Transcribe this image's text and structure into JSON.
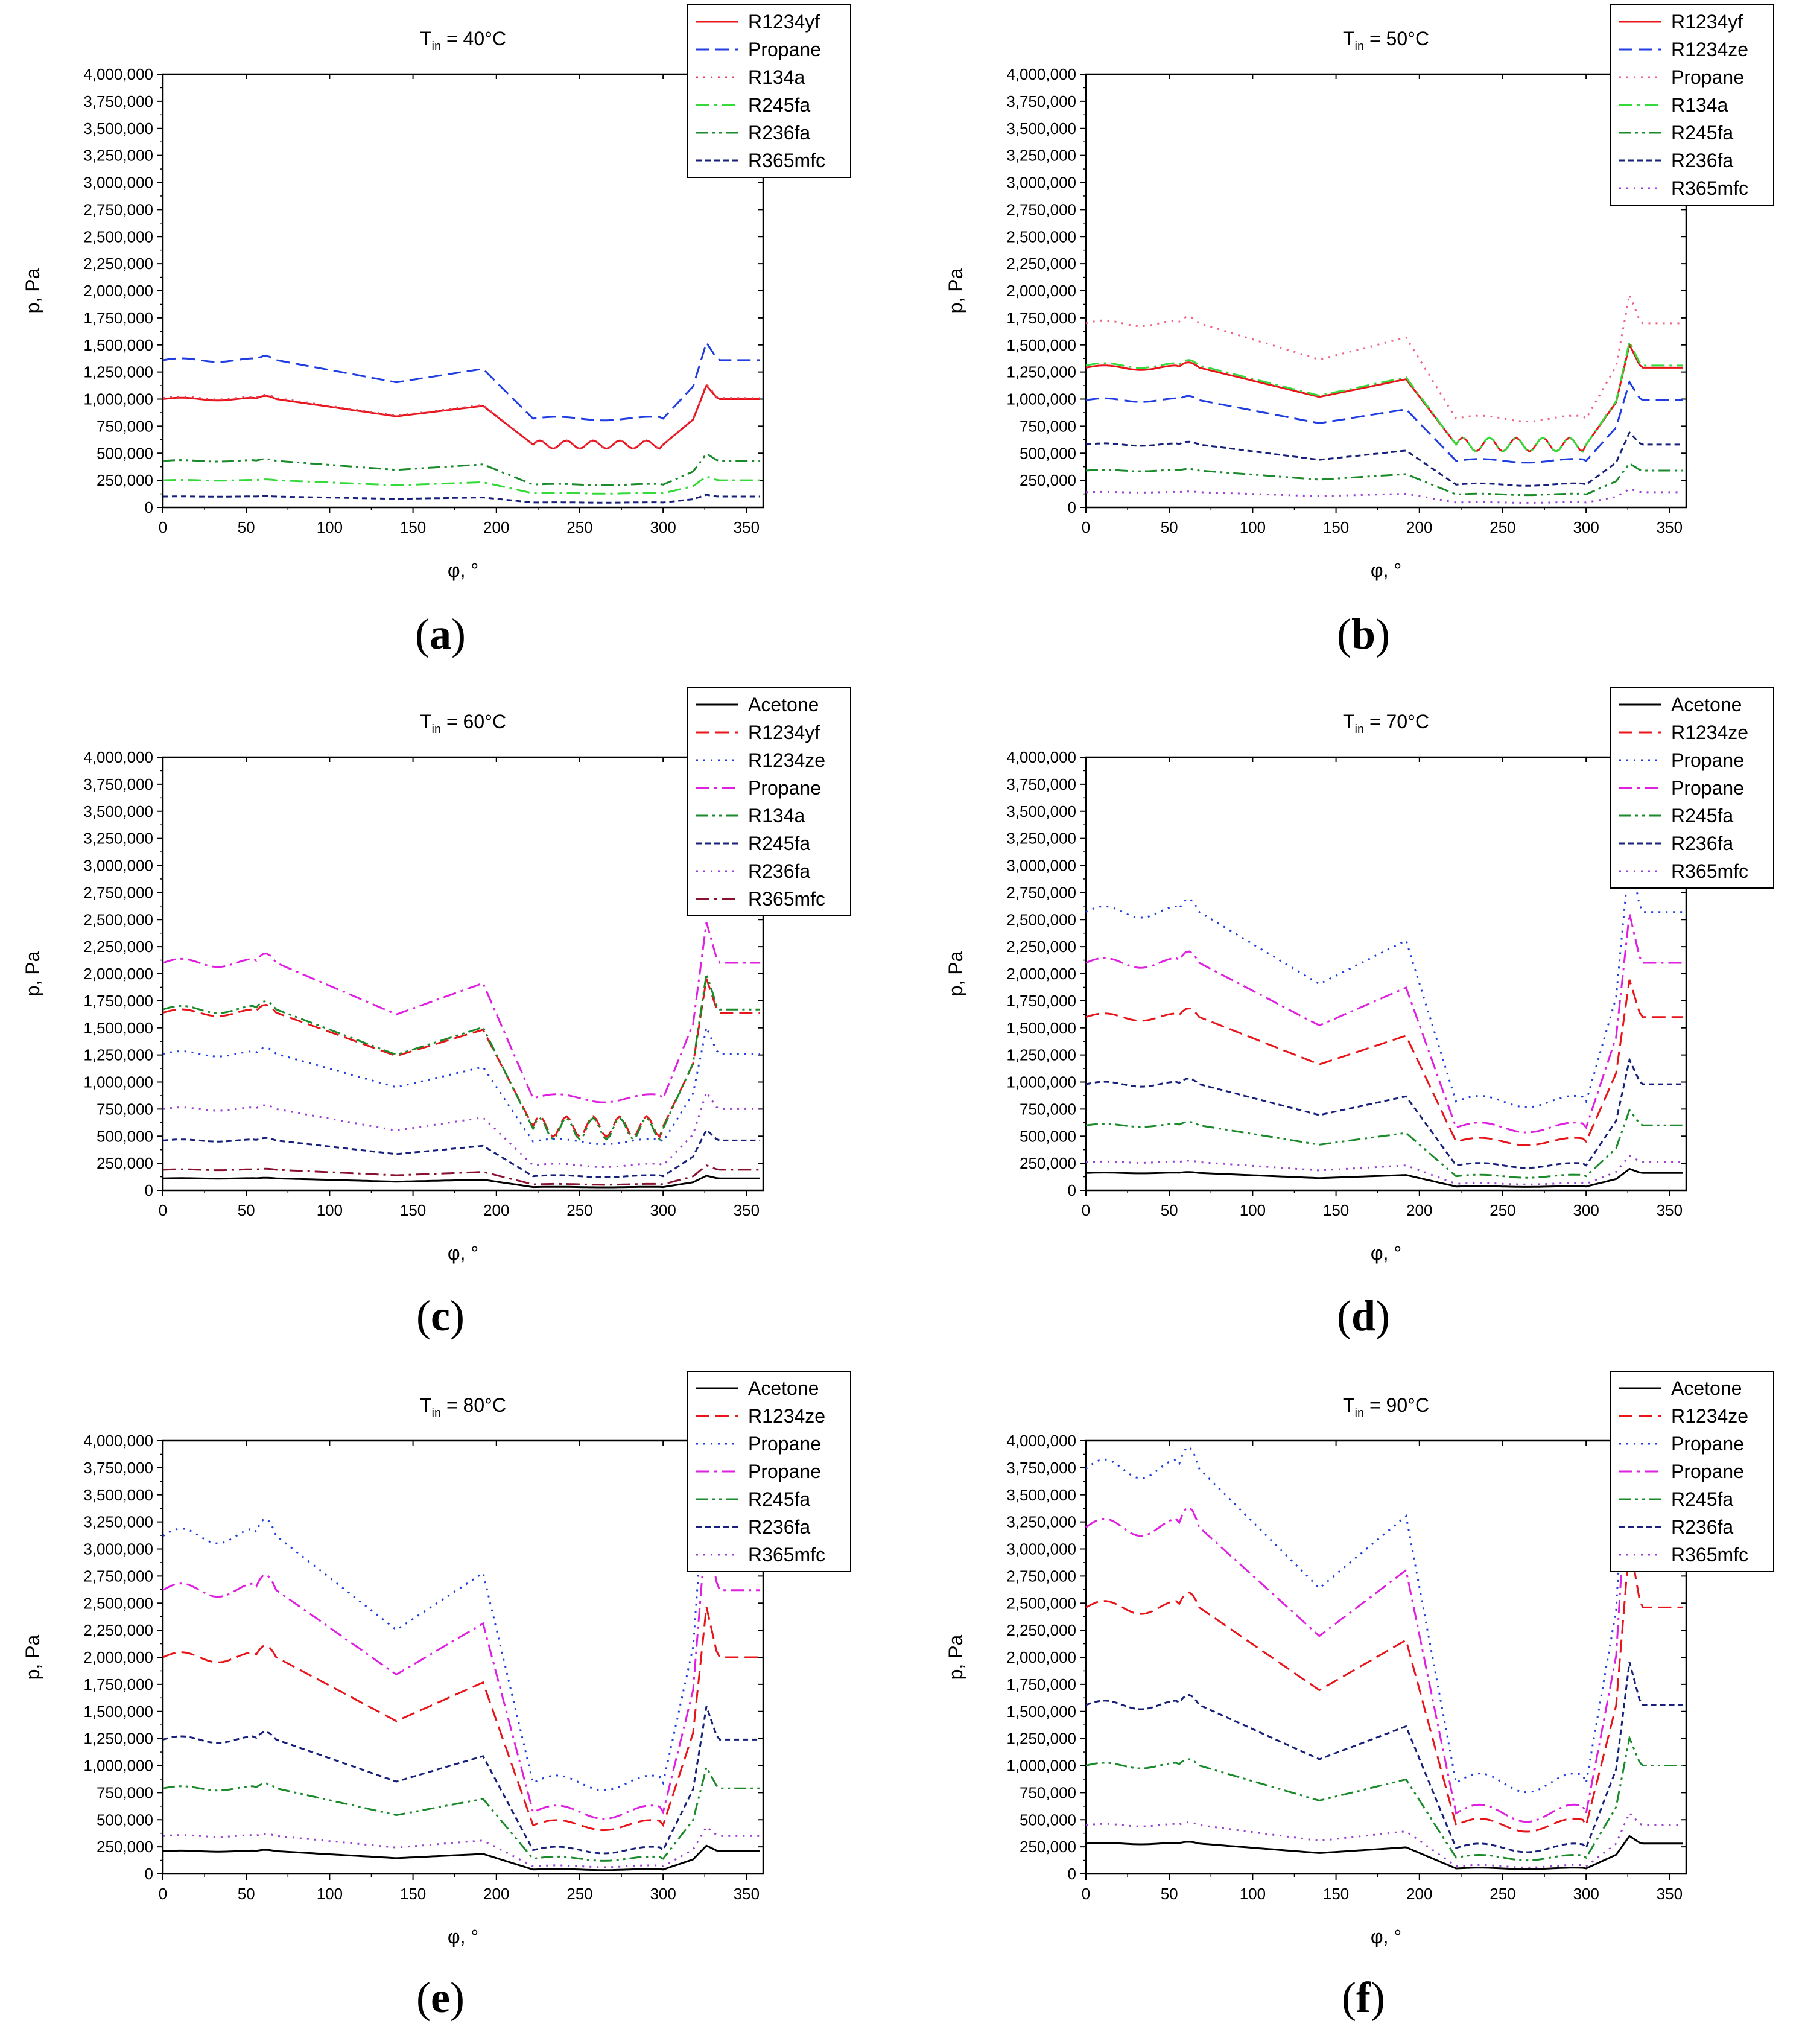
{
  "figure": {
    "panel_labels": [
      {
        "pre": "(",
        "letter": "a",
        "post": ")"
      },
      {
        "pre": "(",
        "letter": "b",
        "post": ")"
      },
      {
        "pre": "(",
        "letter": "c",
        "post": ")"
      },
      {
        "pre": "(",
        "letter": "d",
        "post": ")"
      },
      {
        "pre": "(",
        "letter": "e",
        "post": ")"
      },
      {
        "pre": "(",
        "letter": "f",
        "post": ")"
      }
    ]
  },
  "chart_data": [
    {
      "type": "line",
      "title": {
        "prefix": "T",
        "subscript": "in",
        "suffix": " = 40°C"
      },
      "xlabel": "φ, °",
      "ylabel": "p, Pa",
      "xlim": [
        0,
        360
      ],
      "ylim": [
        0,
        4000000
      ],
      "xticks": [
        0,
        50,
        100,
        150,
        200,
        250,
        300,
        350
      ],
      "yticks": [
        0,
        250000,
        500000,
        750000,
        1000000,
        1250000,
        1500000,
        1750000,
        2000000,
        2250000,
        2500000,
        2750000,
        3000000,
        3250000,
        3500000,
        3750000,
        4000000
      ],
      "ytick_labels": [
        "0",
        "250,000",
        "500,000",
        "750,000",
        "1,000,000",
        "1,250,000",
        "1,500,000",
        "1,750,000",
        "2,000,000",
        "2,250,000",
        "2,500,000",
        "2,750,000",
        "3,000,000",
        "3,250,000",
        "3,500,000",
        "3,750,000",
        "4,000,000"
      ],
      "grid": false,
      "legend_position": "top-right",
      "series": [
        {
          "name": "R1234yf",
          "color": "#e8141a",
          "dash": "solid",
          "base": 1000000,
          "low": 580000,
          "wavy": true
        },
        {
          "name": "Propane",
          "color": "#1f3de0",
          "dash": "dash",
          "base": 1360000,
          "low": 820000,
          "wavy": false
        },
        {
          "name": "R134a",
          "color": "#e8405a",
          "dash": "dot",
          "base": 1010000,
          "low": 580000,
          "wavy": true
        },
        {
          "name": "R245fa",
          "color": "#34d93a",
          "dash": "dashdot",
          "base": 250000,
          "low": 130000,
          "wavy": false
        },
        {
          "name": "R236fa",
          "color": "#1a8a2a",
          "dash": "dashdotdot",
          "base": 430000,
          "low": 210000,
          "wavy": false
        },
        {
          "name": "R365mfc",
          "color": "#16207a",
          "dash": "shortdash",
          "base": 100000,
          "low": 45000,
          "wavy": false
        }
      ]
    },
    {
      "type": "line",
      "title": {
        "prefix": "T",
        "subscript": "in",
        "suffix": " = 50°C"
      },
      "xlabel": "φ, °",
      "ylabel": "p, Pa",
      "xlim": [
        0,
        360
      ],
      "ylim": [
        0,
        4000000
      ],
      "xticks": [
        0,
        50,
        100,
        150,
        200,
        250,
        300,
        350
      ],
      "yticks": [
        0,
        250000,
        500000,
        750000,
        1000000,
        1250000,
        1500000,
        1750000,
        2000000,
        2250000,
        2500000,
        2750000,
        3000000,
        3250000,
        3500000,
        3750000,
        4000000
      ],
      "ytick_labels": [
        "0",
        "250,000",
        "500,000",
        "750,000",
        "1,000,000",
        "1,250,000",
        "1,500,000",
        "1,750,000",
        "2,000,000",
        "2,250,000",
        "2,500,000",
        "2,750,000",
        "3,000,000",
        "3,250,000",
        "3,500,000",
        "3,750,000",
        "4,000,000"
      ],
      "grid": false,
      "legend_position": "top-right",
      "series": [
        {
          "name": "R1234yf",
          "color": "#e8141a",
          "dash": "solid",
          "base": 1290000,
          "low": 580000,
          "wavy": true
        },
        {
          "name": "R1234ze",
          "color": "#1f3de0",
          "dash": "dash",
          "base": 990000,
          "low": 430000,
          "wavy": false
        },
        {
          "name": "Propane",
          "color": "#f06080",
          "dash": "dot",
          "base": 1700000,
          "low": 820000,
          "wavy": false
        },
        {
          "name": "R134a",
          "color": "#34d93a",
          "dash": "dashdot",
          "base": 1310000,
          "low": 580000,
          "wavy": true
        },
        {
          "name": "R245fa",
          "color": "#1a8a2a",
          "dash": "dashdotdot",
          "base": 340000,
          "low": 120000,
          "wavy": false
        },
        {
          "name": "R236fa",
          "color": "#16207a",
          "dash": "shortdash",
          "base": 580000,
          "low": 210000,
          "wavy": false
        },
        {
          "name": "R365mfc",
          "color": "#9a3fd0",
          "dash": "dot",
          "base": 140000,
          "low": 45000,
          "wavy": false
        }
      ]
    },
    {
      "type": "line",
      "title": {
        "prefix": "T",
        "subscript": "in",
        "suffix": " = 60°C"
      },
      "xlabel": "φ, °",
      "ylabel": "p, Pa",
      "xlim": [
        0,
        360
      ],
      "ylim": [
        0,
        4000000
      ],
      "xticks": [
        0,
        50,
        100,
        150,
        200,
        250,
        300,
        350
      ],
      "yticks": [
        0,
        250000,
        500000,
        750000,
        1000000,
        1250000,
        1500000,
        1750000,
        2000000,
        2250000,
        2500000,
        2750000,
        3000000,
        3250000,
        3500000,
        3750000,
        4000000
      ],
      "ytick_labels": [
        "0",
        "250,000",
        "500,000",
        "750,000",
        "1,000,000",
        "1,250,000",
        "1,500,000",
        "1,750,000",
        "2,000,000",
        "2,250,000",
        "2,500,000",
        "2,750,000",
        "3,000,000",
        "3,250,000",
        "3,500,000",
        "3,750,000",
        "4,000,000"
      ],
      "grid": false,
      "legend_position": "top-right",
      "series": [
        {
          "name": "Acetone",
          "color": "#000000",
          "dash": "solid",
          "base": 110000,
          "low": 30000,
          "wavy": false
        },
        {
          "name": "R1234yf",
          "color": "#e8141a",
          "dash": "dash",
          "base": 1640000,
          "low": 590000,
          "wavy": true
        },
        {
          "name": "R1234ze",
          "color": "#1f3de0",
          "dash": "dot",
          "base": 1260000,
          "low": 450000,
          "wavy": false
        },
        {
          "name": "Propane",
          "color": "#e020e0",
          "dash": "dashdot",
          "base": 2100000,
          "low": 850000,
          "wavy": false
        },
        {
          "name": "R134a",
          "color": "#1a8a2a",
          "dash": "dashdotdot",
          "base": 1670000,
          "low": 570000,
          "wavy": true
        },
        {
          "name": "R245fa",
          "color": "#16207a",
          "dash": "shortdash",
          "base": 460000,
          "low": 130000,
          "wavy": false
        },
        {
          "name": "R236fa",
          "color": "#9a3fd0",
          "dash": "dot",
          "base": 750000,
          "low": 230000,
          "wavy": false
        },
        {
          "name": "R365mfc",
          "color": "#8a1030",
          "dash": "dashdot",
          "base": 190000,
          "low": 55000,
          "wavy": false
        }
      ]
    },
    {
      "type": "line",
      "title": {
        "prefix": "T",
        "subscript": "in",
        "suffix": " = 70°C"
      },
      "xlabel": "φ, °",
      "ylabel": "p, Pa",
      "xlim": [
        0,
        360
      ],
      "ylim": [
        0,
        4000000
      ],
      "xticks": [
        0,
        50,
        100,
        150,
        200,
        250,
        300,
        350
      ],
      "yticks": [
        0,
        250000,
        500000,
        750000,
        1000000,
        1250000,
        1500000,
        1750000,
        2000000,
        2250000,
        2500000,
        2750000,
        3000000,
        3250000,
        3500000,
        3750000,
        4000000
      ],
      "ytick_labels": [
        "0",
        "250,000",
        "500,000",
        "750,000",
        "1,000,000",
        "1,250,000",
        "1,500,000",
        "1,750,000",
        "2,000,000",
        "2,250,000",
        "2,500,000",
        "2,750,000",
        "3,000,000",
        "3,250,000",
        "3,500,000",
        "3,750,000",
        "4,000,000"
      ],
      "grid": false,
      "legend_position": "top-right",
      "series": [
        {
          "name": "Acetone",
          "color": "#000000",
          "dash": "solid",
          "base": 160000,
          "low": 35000,
          "wavy": false
        },
        {
          "name": "R1234ze",
          "color": "#e8141a",
          "dash": "dash",
          "base": 1600000,
          "low": 450000,
          "wavy": false
        },
        {
          "name": "Propane",
          "color": "#1f3de0",
          "dash": "dot",
          "base": 2570000,
          "low": 820000,
          "wavy": false
        },
        {
          "name": "Propane",
          "color": "#e020e0",
          "dash": "dashdot",
          "base": 2100000,
          "low": 580000,
          "wavy": false
        },
        {
          "name": "R245fa",
          "color": "#1a8a2a",
          "dash": "dashdotdot",
          "base": 600000,
          "low": 130000,
          "wavy": false
        },
        {
          "name": "R236fa",
          "color": "#16207a",
          "dash": "shortdash",
          "base": 980000,
          "low": 230000,
          "wavy": false
        },
        {
          "name": "R365mfc",
          "color": "#9a3fd0",
          "dash": "dot",
          "base": 260000,
          "low": 60000,
          "wavy": false
        }
      ]
    },
    {
      "type": "line",
      "title": {
        "prefix": "T",
        "subscript": "in",
        "suffix": " = 80°C"
      },
      "xlabel": "φ, °",
      "ylabel": "p, Pa",
      "xlim": [
        0,
        360
      ],
      "ylim": [
        0,
        4000000
      ],
      "xticks": [
        0,
        50,
        100,
        150,
        200,
        250,
        300,
        350
      ],
      "yticks": [
        0,
        250000,
        500000,
        750000,
        1000000,
        1250000,
        1500000,
        1750000,
        2000000,
        2250000,
        2500000,
        2750000,
        3000000,
        3250000,
        3500000,
        3750000,
        4000000
      ],
      "ytick_labels": [
        "0",
        "250,000",
        "500,000",
        "750,000",
        "1,000,000",
        "1,250,000",
        "1,500,000",
        "1,750,000",
        "2,000,000",
        "2,250,000",
        "2,500,000",
        "2,750,000",
        "3,000,000",
        "3,250,000",
        "3,500,000",
        "3,750,000",
        "4,000,000"
      ],
      "grid": false,
      "legend_position": "top-right",
      "series": [
        {
          "name": "Acetone",
          "color": "#000000",
          "dash": "solid",
          "base": 210000,
          "low": 40000,
          "wavy": false
        },
        {
          "name": "R1234ze",
          "color": "#e8141a",
          "dash": "dash",
          "base": 2000000,
          "low": 450000,
          "wavy": false
        },
        {
          "name": "Propane",
          "color": "#1f3de0",
          "dash": "dot",
          "base": 3120000,
          "low": 840000,
          "wavy": false
        },
        {
          "name": "Propane",
          "color": "#e020e0",
          "dash": "dashdot",
          "base": 2620000,
          "low": 570000,
          "wavy": false
        },
        {
          "name": "R245fa",
          "color": "#1a8a2a",
          "dash": "dashdotdot",
          "base": 790000,
          "low": 140000,
          "wavy": false
        },
        {
          "name": "R236fa",
          "color": "#16207a",
          "dash": "shortdash",
          "base": 1240000,
          "low": 220000,
          "wavy": false
        },
        {
          "name": "R365mfc",
          "color": "#9a3fd0",
          "dash": "dot",
          "base": 350000,
          "low": 70000,
          "wavy": false
        }
      ]
    },
    {
      "type": "line",
      "title": {
        "prefix": "T",
        "subscript": "in",
        "suffix": " = 90°C"
      },
      "xlabel": "φ, °",
      "ylabel": "p, Pa",
      "xlim": [
        0,
        360
      ],
      "ylim": [
        0,
        4000000
      ],
      "xticks": [
        0,
        50,
        100,
        150,
        200,
        250,
        300,
        350
      ],
      "yticks": [
        0,
        250000,
        500000,
        750000,
        1000000,
        1250000,
        1500000,
        1750000,
        2000000,
        2250000,
        2500000,
        2750000,
        3000000,
        3250000,
        3500000,
        3750000,
        4000000
      ],
      "ytick_labels": [
        "0",
        "250,000",
        "500,000",
        "750,000",
        "1,000,000",
        "1,250,000",
        "1,500,000",
        "1,750,000",
        "2,000,000",
        "2,250,000",
        "2,500,000",
        "2,750,000",
        "3,000,000",
        "3,250,000",
        "3,500,000",
        "3,750,000",
        "4,000,000"
      ],
      "grid": false,
      "legend_position": "top-right",
      "series": [
        {
          "name": "Acetone",
          "color": "#000000",
          "dash": "solid",
          "base": 280000,
          "low": 50000,
          "wavy": false
        },
        {
          "name": "R1234ze",
          "color": "#e8141a",
          "dash": "dash",
          "base": 2460000,
          "low": 450000,
          "wavy": false
        },
        {
          "name": "Propane",
          "color": "#1f3de0",
          "dash": "dot",
          "base": 3740000,
          "low": 840000,
          "wavy": false
        },
        {
          "name": "Propane",
          "color": "#e020e0",
          "dash": "dashdot",
          "base": 3200000,
          "low": 560000,
          "wavy": false
        },
        {
          "name": "R245fa",
          "color": "#1a8a2a",
          "dash": "dashdotdot",
          "base": 1000000,
          "low": 150000,
          "wavy": false
        },
        {
          "name": "R236fa",
          "color": "#16207a",
          "dash": "shortdash",
          "base": 1560000,
          "low": 240000,
          "wavy": false
        },
        {
          "name": "R365mfc",
          "color": "#9a3fd0",
          "dash": "dot",
          "base": 450000,
          "low": 70000,
          "wavy": false
        }
      ]
    }
  ]
}
